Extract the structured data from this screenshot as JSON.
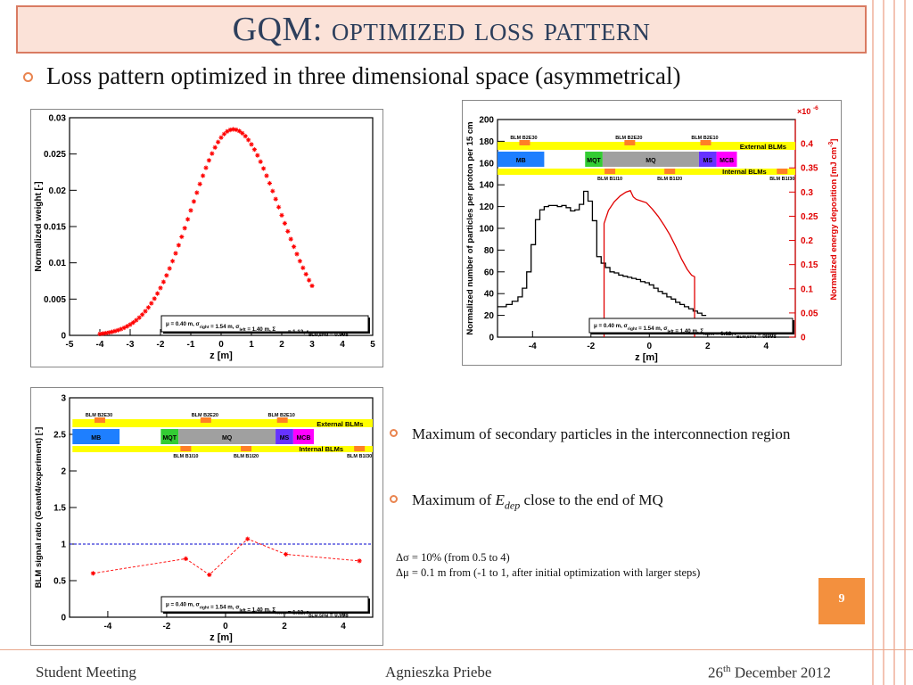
{
  "slide": {
    "title_prefix": "GQM: ",
    "title_rest": "optimized loss pattern",
    "bullet_main": "Loss pattern optimized in three dimensional space (asymmetrical)",
    "bullets_right": [
      "Maximum of secondary particles in the interconnection region",
      "Maximum of ",
      "E",
      "dep",
      " close to the end of MQ"
    ],
    "notes": [
      "Δσ = 10% (from 0.5 to 4)",
      "Δμ = 0.1 m from (-1 to 1, after initial optimization with larger steps)"
    ],
    "page_number": "9",
    "footer": {
      "left": "Student Meeting",
      "center": "Agnieszka Priebe",
      "right_day": "26",
      "right_sup": "th",
      "right_rest": " December 2012"
    }
  },
  "legend_text": {
    "mu": "μ = 0.40 m, σ",
    "right": "right",
    "s1": " = 1.54 m, σ",
    "left": "left",
    "s2": " = 1.40 m, Σ",
    "norm": "norm",
    "s3": " = 1.12, r",
    "blm": "BLM,SPM",
    "s4": " = 0.998"
  },
  "magnet_labels": {
    "top_blms": [
      "BLM B2E30",
      "BLM B2E20",
      "BLM B2E10"
    ],
    "bottom_blms": [
      "BLM B1I10",
      "BLM B1I20",
      "BLM B1I30"
    ],
    "magnets": [
      "MB",
      "MQT",
      "MQ",
      "MS",
      "MCB"
    ],
    "external": "External BLMs",
    "internal": "Internal BLMs"
  },
  "chart_data": [
    {
      "type": "scatter",
      "title": "",
      "xlabel": "z [m]",
      "ylabel": "Normalized weight [-]",
      "xlim": [
        -5,
        5
      ],
      "ylim": [
        0,
        0.03
      ],
      "xticks": [
        "-5",
        "-4",
        "-3",
        "-2",
        "-1",
        "0",
        "1",
        "2",
        "3",
        "4",
        "5"
      ],
      "yticks": [
        "0",
        "0.005",
        "0.01",
        "0.015",
        "0.02",
        "0.025",
        "0.03"
      ],
      "color": "#ff0000",
      "marker": "asterisk",
      "mu": 0.4,
      "sigma_left": 1.4,
      "sigma_right": 1.54,
      "peak": 0.0284,
      "x_range": [
        -4.0,
        3.0
      ],
      "x_step": 0.1
    },
    {
      "type": "line",
      "title": "",
      "xlabel": "z [m]",
      "ylabel": "Normalized number of particles per proton per 15 cm",
      "ylabel_right": "Normalized energy deposition [mJ cm",
      "ylabel_right_sup": "-3",
      "ylabel_right_end": "]",
      "right_exponent": "×10",
      "right_exponent_sup": "-6",
      "xlim": [
        -5.2,
        5
      ],
      "ylim": [
        0,
        200
      ],
      "y2lim": [
        0,
        0.45
      ],
      "xticks": [
        "-4",
        "-2",
        "0",
        "2",
        "4"
      ],
      "yticks": [
        "0",
        "20",
        "40",
        "60",
        "80",
        "100",
        "120",
        "140",
        "160",
        "180",
        "200"
      ],
      "y2ticks": [
        "0",
        "0.05",
        "0.1",
        "0.15",
        "0.2",
        "0.25",
        "0.3",
        "0.35",
        "0.4"
      ],
      "series": [
        {
          "name": "",
          "color": "#000000",
          "step": true,
          "points": [
            [
              -5.2,
              28
            ],
            [
              -4.9,
              30
            ],
            [
              -4.7,
              33
            ],
            [
              -4.5,
              37
            ],
            [
              -4.35,
              45
            ],
            [
              -4.2,
              60
            ],
            [
              -4.05,
              85
            ],
            [
              -3.9,
              108
            ],
            [
              -3.75,
              117
            ],
            [
              -3.6,
              120
            ],
            [
              -3.45,
              121
            ],
            [
              -3.3,
              121
            ],
            [
              -3.15,
              120
            ],
            [
              -3.0,
              121
            ],
            [
              -2.85,
              119
            ],
            [
              -2.7,
              116
            ],
            [
              -2.55,
              117
            ],
            [
              -2.4,
              122
            ],
            [
              -2.25,
              134
            ],
            [
              -2.1,
              125
            ],
            [
              -1.95,
              107
            ],
            [
              -1.8,
              74
            ],
            [
              -1.65,
              68
            ],
            [
              -1.5,
              64
            ],
            [
              -1.35,
              60
            ],
            [
              -1.2,
              59
            ],
            [
              -1.05,
              57
            ],
            [
              -0.9,
              56
            ],
            [
              -0.75,
              55
            ],
            [
              -0.6,
              54
            ],
            [
              -0.45,
              53
            ],
            [
              -0.3,
              51
            ],
            [
              -0.15,
              50
            ],
            [
              0.0,
              48
            ],
            [
              0.15,
              45
            ],
            [
              0.3,
              42
            ],
            [
              0.45,
              40
            ],
            [
              0.6,
              37
            ],
            [
              0.75,
              35
            ],
            [
              0.9,
              32
            ],
            [
              1.05,
              30
            ],
            [
              1.2,
              28
            ],
            [
              1.35,
              26
            ],
            [
              1.5,
              24
            ],
            [
              1.65,
              22
            ],
            [
              1.8,
              20
            ]
          ]
        },
        {
          "name": "",
          "color": "#e00000",
          "step": false,
          "axis": "right",
          "points": [
            [
              -1.55,
              0
            ],
            [
              -1.55,
              0.235
            ],
            [
              -1.4,
              0.262
            ],
            [
              -1.2,
              0.28
            ],
            [
              -1.0,
              0.292
            ],
            [
              -0.8,
              0.3
            ],
            [
              -0.65,
              0.303
            ],
            [
              -0.55,
              0.29
            ],
            [
              -0.45,
              0.285
            ],
            [
              -0.3,
              0.282
            ],
            [
              -0.1,
              0.278
            ],
            [
              0.1,
              0.265
            ],
            [
              0.3,
              0.25
            ],
            [
              0.5,
              0.232
            ],
            [
              0.7,
              0.212
            ],
            [
              0.9,
              0.188
            ],
            [
              1.1,
              0.162
            ],
            [
              1.3,
              0.14
            ],
            [
              1.45,
              0.128
            ],
            [
              1.55,
              0.125
            ],
            [
              1.55,
              0
            ]
          ]
        }
      ]
    },
    {
      "type": "scatter",
      "title": "",
      "xlabel": "z [m]",
      "ylabel": "BLM signal ratio (Geant4/experiment) [-]",
      "xlim": [
        -5.3,
        5
      ],
      "ylim": [
        0,
        3
      ],
      "xticks": [
        "-4",
        "-2",
        "0",
        "2",
        "4"
      ],
      "yticks": [
        "0",
        "0.5",
        "1",
        "1.5",
        "2",
        "2.5",
        "3"
      ],
      "reference_line": 1,
      "color": "#ff0000",
      "x": [
        -4.5,
        -1.35,
        -0.55,
        0.75,
        2.05,
        4.55
      ],
      "y": [
        0.6,
        0.8,
        0.58,
        1.07,
        0.86,
        0.77
      ]
    }
  ]
}
